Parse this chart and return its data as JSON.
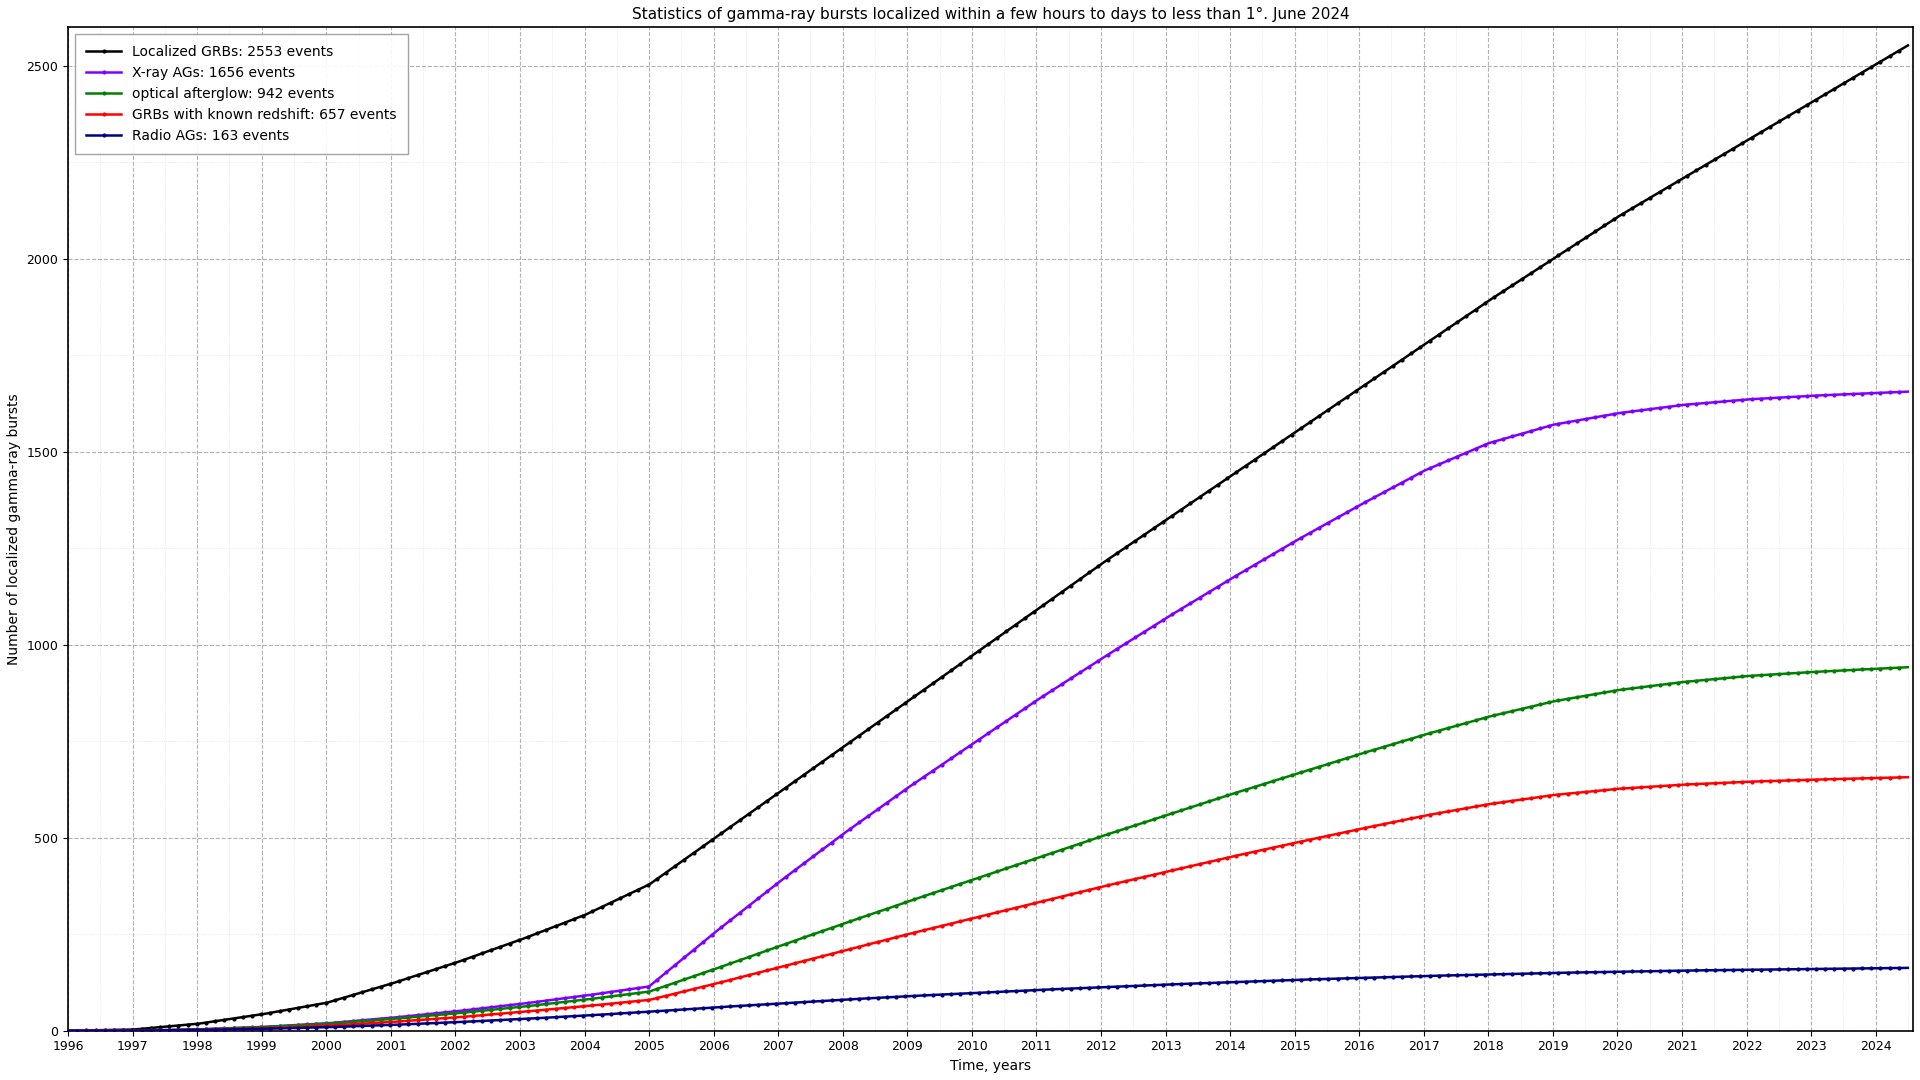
{
  "title": "Statistics of gamma-ray bursts localized within a few hours to days to less than 1°. June 2024",
  "xlabel": "Time, years",
  "ylabel": "Number of localized gamma-ray bursts",
  "series": [
    {
      "label": "Localized GRBs: 2553 events",
      "color": "#000000",
      "final_value": 2553,
      "marker": "o"
    },
    {
      "label": "X-ray AGs: 1656 events",
      "color": "#8000ff",
      "final_value": 1656,
      "marker": "o"
    },
    {
      "label": "optical afterglow: 942 events",
      "color": "#008000",
      "final_value": 942,
      "marker": "o"
    },
    {
      "label": "GRBs with known redshift: 657 events",
      "color": "#ff0000",
      "final_value": 657,
      "marker": "o"
    },
    {
      "label": "Radio AGs: 163 events",
      "color": "#000080",
      "final_value": 163,
      "marker": "o"
    }
  ],
  "xlim": [
    1996.0,
    2024.58
  ],
  "ylim": [
    0,
    2600
  ],
  "yticks": [
    0,
    500,
    1000,
    1500,
    2000,
    2500
  ],
  "xtick_years": [
    1996,
    1997,
    1998,
    1999,
    2000,
    2001,
    2002,
    2003,
    2004,
    2005,
    2006,
    2007,
    2008,
    2009,
    2010,
    2011,
    2012,
    2013,
    2014,
    2015,
    2016,
    2017,
    2018,
    2019,
    2020,
    2021,
    2022,
    2023,
    2024
  ],
  "background_color": "#ffffff",
  "grid_major_color": "#aaaaaa",
  "grid_minor_color": "#cccccc",
  "title_fontsize": 11,
  "label_fontsize": 10,
  "tick_fontsize": 9,
  "legend_fontsize": 10,
  "line_width": 1.8
}
